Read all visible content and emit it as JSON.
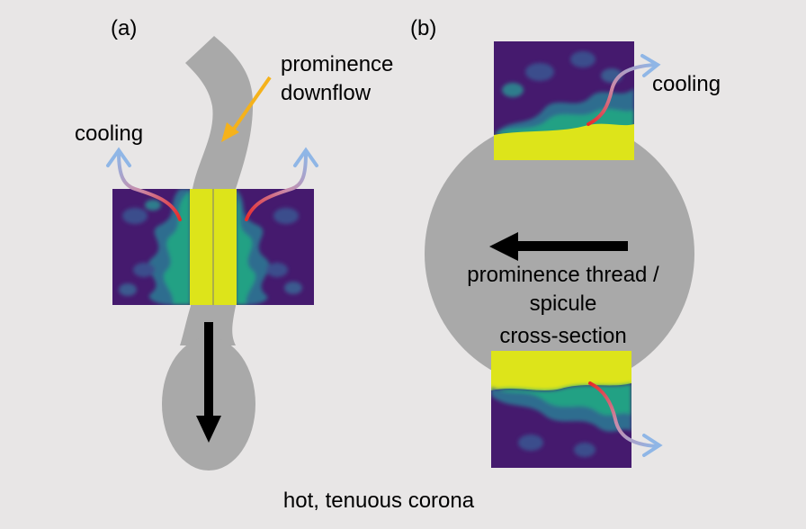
{
  "labels": {
    "panel_a": "(a)",
    "panel_b": "(b)",
    "downflow_line1": "prominence",
    "downflow_line2": "downflow",
    "cooling_a": "cooling",
    "cooling_b": "cooling",
    "thread_line1": "prominence thread /",
    "thread_line2": "spicule",
    "thread_line3": "cross-section",
    "corona": "hot, tenuous corona"
  },
  "colors": {
    "background": "#e8e6e6",
    "blob": "#a9a9a9",
    "sim_dark": "#451a6e",
    "sim_blue": "#2f6d8f",
    "sim_teal": "#22a184",
    "sim_yellow": "#dde41a",
    "cooling_red": "#e82a2a",
    "cooling_blue": "#8fb6e6",
    "downflow_arrow": "#f5b21b",
    "motion_arrow": "#000000"
  }
}
